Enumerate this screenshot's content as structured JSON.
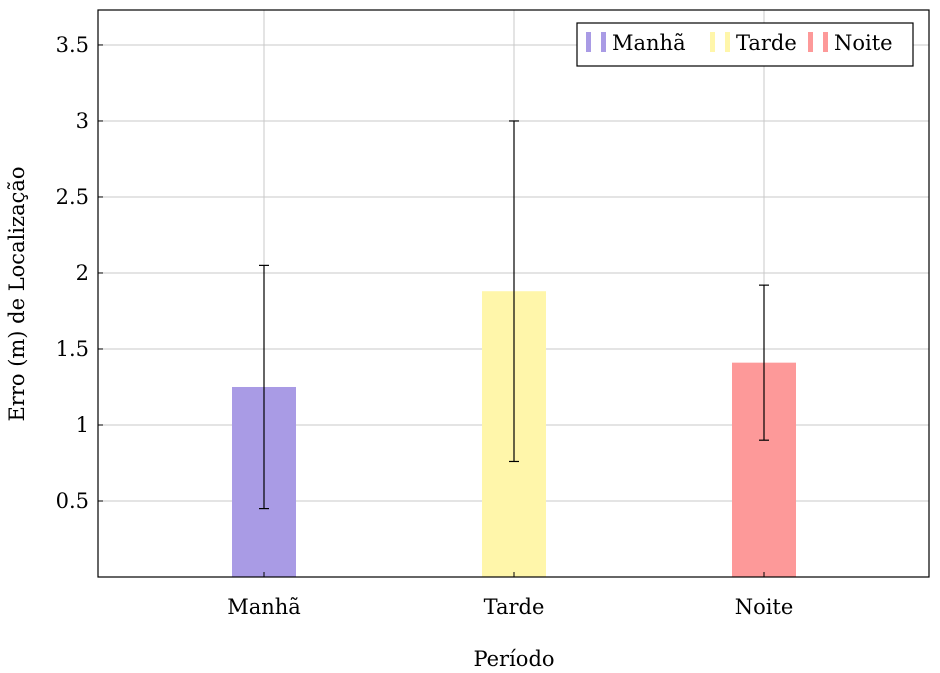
{
  "chart_data": {
    "type": "bar",
    "title": "",
    "xlabel": "Período",
    "ylabel": "Erro (m) de Localização",
    "categories": [
      "Manhã",
      "Tarde",
      "Noite"
    ],
    "values": [
      1.25,
      1.88,
      1.41
    ],
    "error_bars": [
      {
        "low": 0.45,
        "high": 2.05
      },
      {
        "low": 0.76,
        "high": 3.0
      },
      {
        "low": 0.9,
        "high": 1.92
      }
    ],
    "colors": [
      "#a99be5",
      "#fff6aa",
      "#fd9999"
    ],
    "ylim": [
      0,
      3.73
    ],
    "yticks": [
      0.5,
      1,
      1.5,
      2,
      2.5,
      3,
      3.5
    ],
    "ytick_labels": [
      "0.5",
      "1",
      "1.5",
      "2",
      "2.5",
      "3",
      "3.5"
    ],
    "grid": true,
    "legend": {
      "placement": "top-right",
      "entries": [
        "Manhã",
        "Tarde",
        "Noite"
      ]
    }
  }
}
